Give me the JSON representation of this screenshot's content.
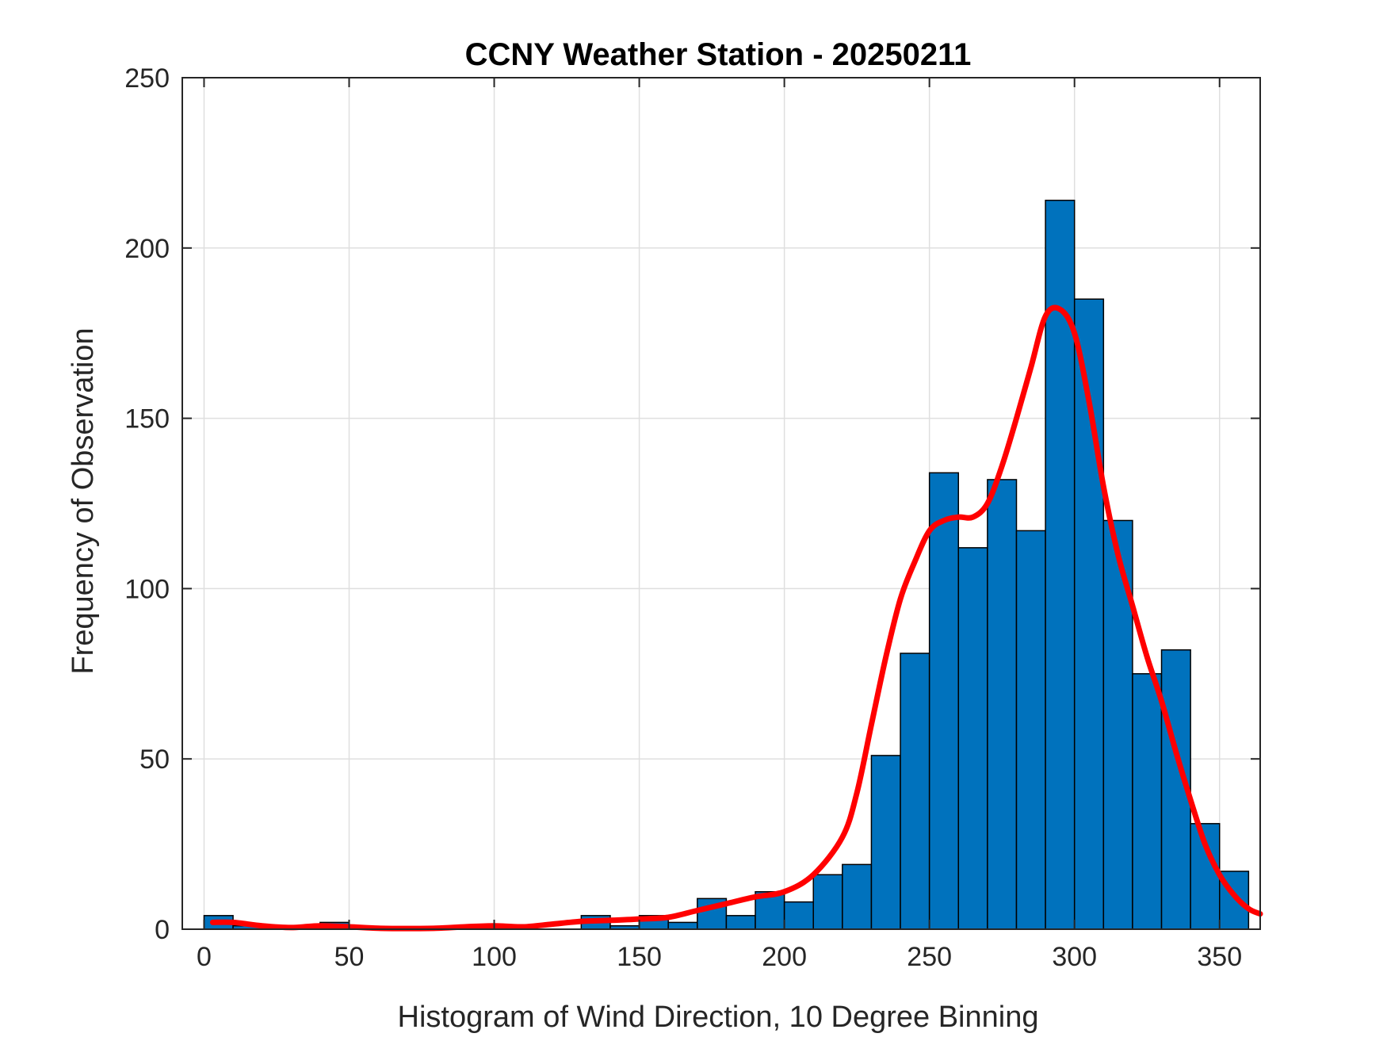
{
  "chart_data": {
    "type": "bar",
    "title": "CCNY Weather Station - 20250211",
    "xlabel": "Histogram of Wind Direction, 10 Degree Binning",
    "ylabel": "Frequency of Observation",
    "xlim": [
      -7.5,
      364
    ],
    "ylim": [
      0,
      250
    ],
    "xticks": [
      0,
      50,
      100,
      150,
      200,
      250,
      300,
      350
    ],
    "yticks": [
      0,
      50,
      100,
      150,
      200,
      250
    ],
    "grid": true,
    "bin_width": 10,
    "bin_edges": [
      0,
      10,
      20,
      30,
      40,
      50,
      60,
      70,
      80,
      90,
      100,
      110,
      120,
      130,
      140,
      150,
      160,
      170,
      180,
      190,
      200,
      210,
      220,
      230,
      240,
      250,
      260,
      270,
      280,
      290,
      300,
      310,
      320,
      330,
      340,
      350,
      360
    ],
    "values": [
      4,
      1,
      1,
      1,
      2,
      0,
      0,
      0,
      0,
      0,
      0,
      0,
      0,
      4,
      1,
      4,
      2,
      9,
      4,
      11,
      8,
      16,
      19,
      51,
      81,
      134,
      112,
      132,
      117,
      214,
      185,
      120,
      75,
      82,
      31,
      17
    ],
    "bar_color": "#0072BD",
    "bar_edge_color": "#000000",
    "fit": {
      "color": "#FF0000",
      "x": [
        3,
        10,
        20,
        30,
        40,
        50,
        60,
        70,
        80,
        90,
        100,
        110,
        120,
        130,
        140,
        150,
        160,
        170,
        180,
        190,
        200,
        210,
        220,
        225,
        230,
        235,
        240,
        245,
        250,
        255,
        260,
        265,
        270,
        275,
        280,
        285,
        290,
        295,
        300,
        305,
        310,
        315,
        320,
        325,
        330,
        335,
        340,
        345,
        350,
        355,
        360,
        364
      ],
      "y": [
        2,
        2,
        1,
        0.5,
        1,
        0.7,
        0.3,
        0.2,
        0.3,
        0.7,
        1,
        0.7,
        1.5,
        2.3,
        2.6,
        3,
        3.5,
        5.5,
        7.5,
        9.5,
        11,
        16,
        27,
        40,
        60,
        80,
        97,
        108,
        117,
        120,
        121,
        121,
        125,
        136,
        150,
        165,
        180,
        182,
        175,
        155,
        130,
        110,
        95,
        80,
        67,
        52,
        38,
        25,
        16,
        10,
        6,
        4.5
      ]
    }
  }
}
